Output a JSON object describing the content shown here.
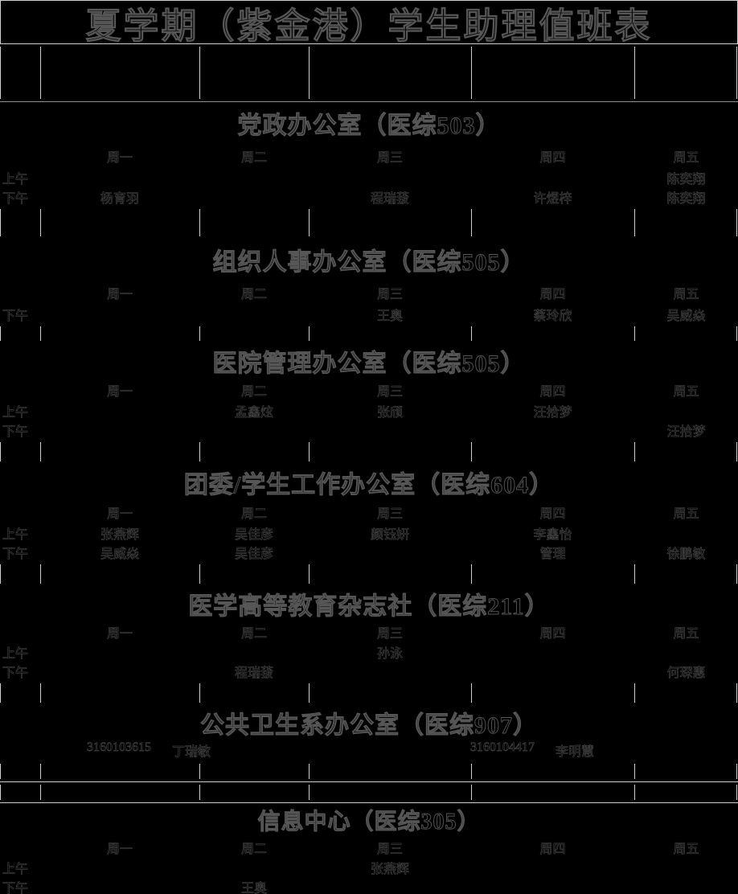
{
  "title": "夏学期（紫金港）学生助理值班表",
  "weekdays": [
    "周一",
    "周二",
    "周三",
    "周四",
    "周五"
  ],
  "sections": [
    {
      "name": "党政办公室（医综503）",
      "weekday_header": true,
      "rows": [
        {
          "label": "上午",
          "cells": [
            "",
            "",
            "",
            "",
            "陈奕翔"
          ]
        },
        {
          "label": "下午",
          "cells": [
            "杨育羽",
            "",
            "程瑞菝",
            "许煜梓",
            "陈奕翔"
          ]
        }
      ]
    },
    {
      "name": "组织人事办公室（医综505）",
      "weekday_header": true,
      "rows": [
        {
          "label": "下午",
          "cells": [
            "",
            "",
            "王奥",
            "蔡玲欣",
            "吴威焱"
          ]
        }
      ]
    },
    {
      "name": "医院管理办公室（医综505）",
      "weekday_header": true,
      "rows": [
        {
          "label": "上午",
          "cells": [
            "",
            "孟鑫炫",
            "张颀",
            "汪拾梦",
            ""
          ]
        },
        {
          "label": "下午",
          "cells": [
            "",
            "",
            "",
            "",
            "汪拾梦"
          ]
        }
      ]
    },
    {
      "name": "团委/学生工作办公室（医综604）",
      "weekday_header": true,
      "rows": [
        {
          "label": "上午",
          "cells": [
            "张燕辉",
            "吴佳彦",
            "颜钰妍",
            "李鑫怡",
            ""
          ]
        },
        {
          "label": "下午",
          "cells": [
            "吴威焱",
            "吴佳彦",
            "",
            "管理",
            "徐鹏敏"
          ]
        }
      ]
    },
    {
      "name": "医学高等教育杂志社（医综211）",
      "weekday_header": true,
      "rows": [
        {
          "label": "上午",
          "cells": [
            "",
            "",
            "孙泳",
            "",
            ""
          ]
        },
        {
          "label": "下午",
          "cells": [
            "",
            "程瑞菝",
            "",
            "",
            "何琛惠"
          ]
        }
      ]
    },
    {
      "name": "公共卫生系办公室（医综907）",
      "weekday_header": false,
      "entries": [
        {
          "id": "3160103615",
          "person": "丁瑞敏"
        },
        {
          "id": "3160104417",
          "person": "李明慧"
        }
      ]
    },
    {
      "name": "信息中心（医综305）",
      "weekday_header": true,
      "rows": [
        {
          "label": "上午",
          "cells": [
            "",
            "",
            "张燕辉",
            "",
            ""
          ]
        },
        {
          "label": "下午",
          "cells": [
            "",
            "王奥",
            "",
            "",
            ""
          ]
        }
      ]
    }
  ],
  "colors": {
    "background": "#000000",
    "grid_line": "#cfcfcf",
    "text": "#000000",
    "text_outline": "#4f4f4f"
  }
}
